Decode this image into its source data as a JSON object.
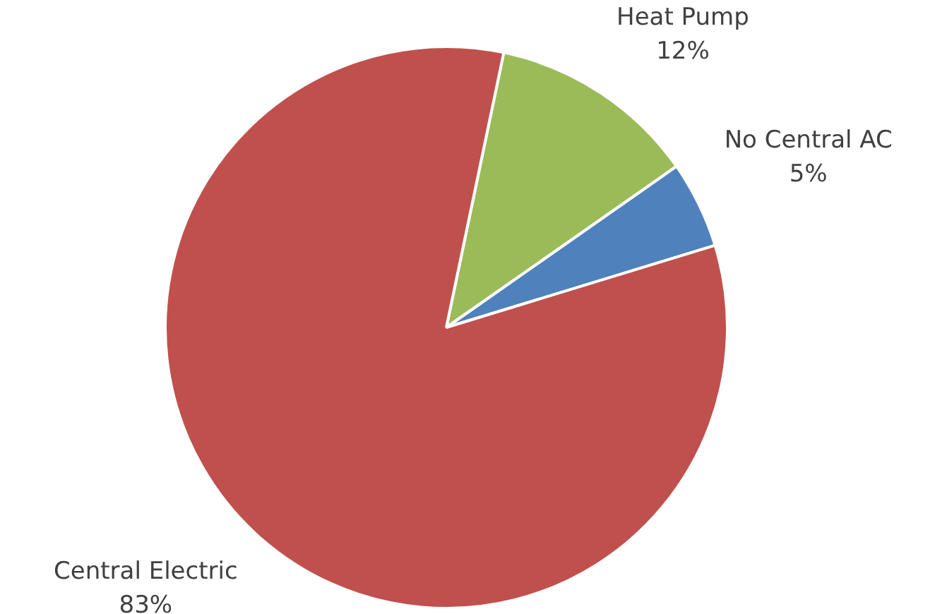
{
  "chart_data": {
    "type": "pie",
    "categories": [
      "Heat Pump",
      "No Central AC",
      "Central Electric"
    ],
    "values": [
      12,
      5,
      83
    ],
    "colors": [
      "#9bbb59",
      "#4f81bd",
      "#c0504d"
    ],
    "value_labels": [
      "12%",
      "5%",
      "83%"
    ],
    "legend": false
  }
}
